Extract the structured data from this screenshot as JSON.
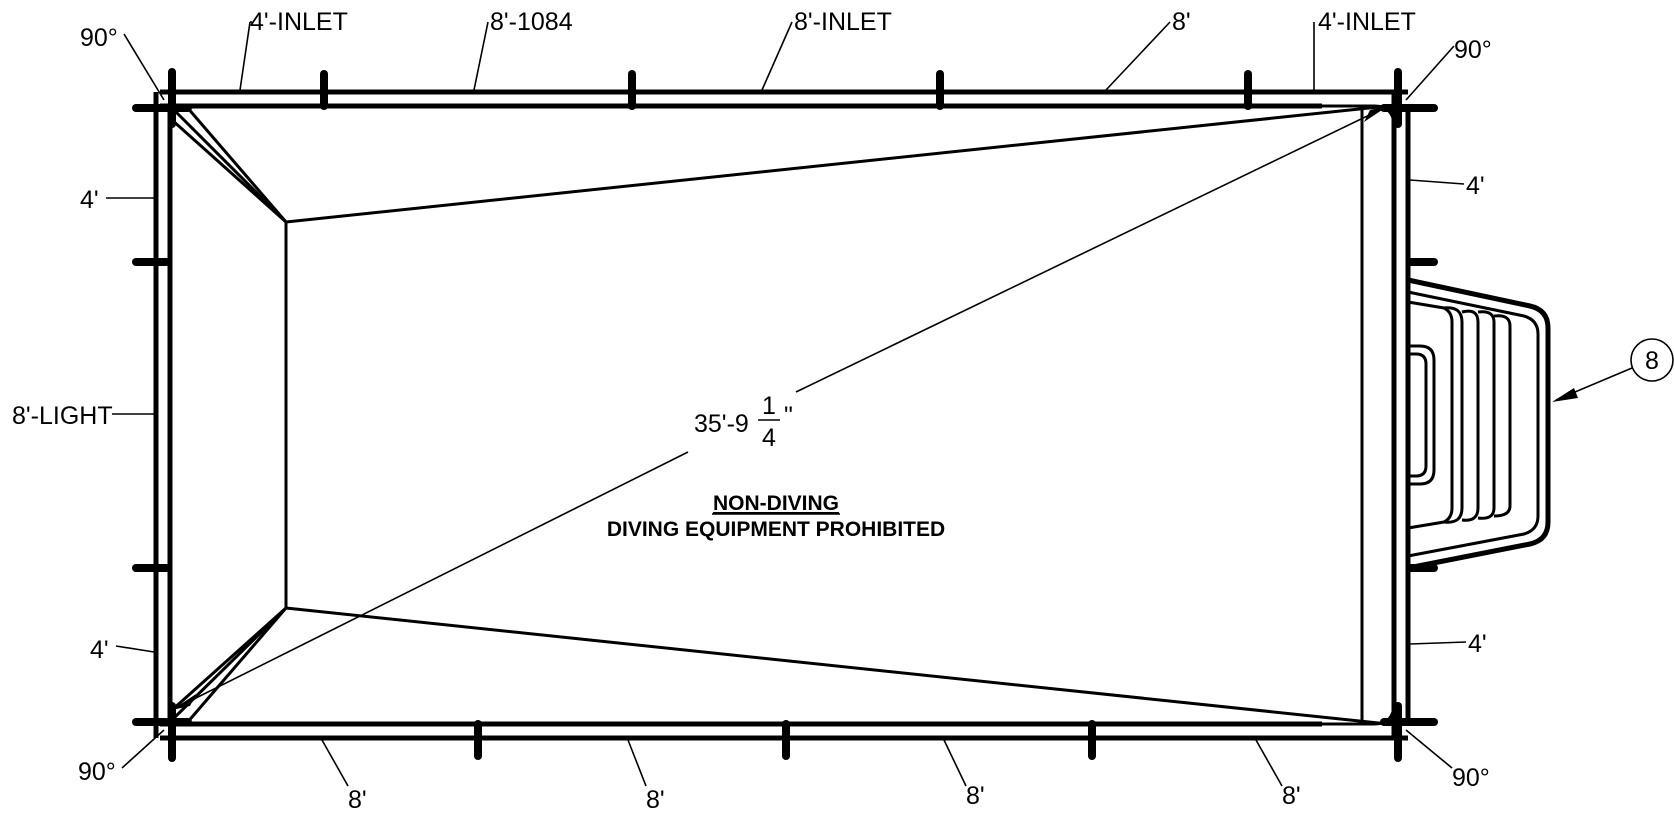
{
  "top_panels": [
    {
      "label": "4'-INLET"
    },
    {
      "label": "8'-1084"
    },
    {
      "label": "8'-INLET"
    },
    {
      "label": "8'"
    },
    {
      "label": "4'-INLET"
    }
  ],
  "bottom_panels": [
    {
      "label": "8'"
    },
    {
      "label": "8'"
    },
    {
      "label": "8'"
    },
    {
      "label": "8'"
    }
  ],
  "left_panels": [
    {
      "label": "4'"
    },
    {
      "label": "8'-LIGHT"
    },
    {
      "label": "4'"
    }
  ],
  "right_panels": [
    {
      "label": "4'"
    },
    {
      "label": "4'"
    }
  ],
  "corner_angles": {
    "top_left": "90°",
    "top_right": "90°",
    "bottom_left": "90°",
    "bottom_right": "90°"
  },
  "diagonal": {
    "whole": "35'-9",
    "numerator": "1",
    "denominator": "4",
    "unit": "\""
  },
  "notice": {
    "title": "NON-DIVING",
    "subtitle": "DIVING EQUIPMENT PROHIBITED"
  },
  "step_callout": {
    "label": "8"
  }
}
